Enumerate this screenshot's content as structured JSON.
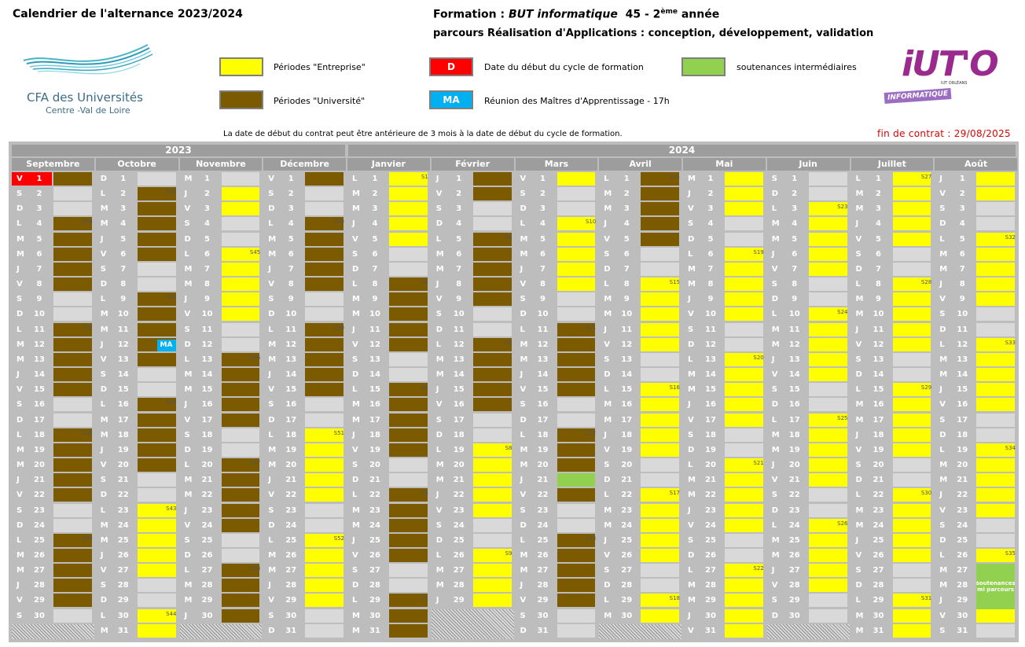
{
  "header": {
    "title": "Calendrier de l'alternance 2023/2024",
    "formation_prefix": "Formation : ",
    "formation_name": "BUT informatique",
    "formation_num": "45 - 2",
    "formation_sup": "ème",
    "formation_suffix": " année",
    "parcours": "parcours Réalisation d'Applications : conception, développement, validation"
  },
  "logos": {
    "cfa_line1": "CFA des Universités",
    "cfa_line2": "Centre -Val de Loire",
    "iuto_text": "iUT'O",
    "iuto_sub": "INFORMATIQUE",
    "iuto_small": "IUT ORLÉANS"
  },
  "legend": {
    "entreprise": "Périodes \"Entreprise\"",
    "universite": "Périodes \"Université\"",
    "debut_badge": "D",
    "debut": "Date du début du cycle de formation",
    "ma_badge": "MA",
    "reunion": "Réunion des Maîtres d'Apprentissage - 17h",
    "soutenances": "soutenances intermédiaires",
    "colors": {
      "entreprise": "#ffff00",
      "universite": "#7b5a00",
      "debut": "#ff0000",
      "reunion": "#00b0f0",
      "soutenances": "#92d050"
    }
  },
  "note": "La date de début du contrat peut être antérieure de 3 mois à la date de début du cycle de formation.",
  "fin_contrat": "fin de contrat : 29/08/2025",
  "years": [
    "2023",
    "2024"
  ],
  "months": [
    {
      "name": "Septembre",
      "first": "V",
      "days": 30,
      "blocks": [
        [
          "U",
          1,
          10
        ],
        [
          "V",
          2,
          3
        ],
        [
          "U",
          4,
          10
        ],
        [
          "U",
          11,
          17
        ],
        [
          "U",
          18,
          24
        ],
        [
          "U",
          25,
          30
        ]
      ],
      "weeks": [
        [
          4,
          "S36"
        ],
        [
          11,
          "S37"
        ],
        [
          18,
          "S38"
        ],
        [
          25,
          "S39"
        ]
      ],
      "special": {
        "red": 1
      }
    },
    {
      "name": "Octobre",
      "first": "D",
      "days": 31,
      "blocks": [
        [
          "V",
          1,
          1
        ],
        [
          "U",
          2,
          8
        ],
        [
          "U",
          9,
          15
        ],
        [
          "U",
          16,
          22
        ],
        [
          "E",
          23,
          31
        ]
      ],
      "weeks": [
        [
          2,
          "S40"
        ],
        [
          9,
          "S41"
        ],
        [
          16,
          "S42"
        ],
        [
          23,
          "S43"
        ],
        [
          30,
          "S44"
        ]
      ],
      "special": {
        "ma": 12
      }
    },
    {
      "name": "Novembre",
      "first": "M",
      "days": 30,
      "blocks": [
        [
          "V",
          1,
          1
        ],
        [
          "E",
          2,
          3
        ],
        [
          "V",
          4,
          5
        ],
        [
          "E",
          6,
          10
        ],
        [
          "V",
          11,
          12
        ],
        [
          "U",
          13,
          19
        ],
        [
          "U",
          20,
          26
        ],
        [
          "U",
          27,
          30
        ]
      ],
      "weeks": [
        [
          6,
          "S45"
        ],
        [
          13,
          "S46"
        ],
        [
          20,
          "S47"
        ],
        [
          27,
          "S48"
        ]
      ],
      "special": {}
    },
    {
      "name": "Décembre",
      "first": "V",
      "days": 31,
      "blocks": [
        [
          "U",
          1,
          3
        ],
        [
          "U",
          4,
          10
        ],
        [
          "U",
          11,
          17
        ],
        [
          "E",
          18,
          24
        ],
        [
          "E",
          25,
          31
        ]
      ],
      "weeks": [
        [
          4,
          "S49"
        ],
        [
          11,
          "S50"
        ],
        [
          18,
          "S51"
        ],
        [
          25,
          "S52"
        ]
      ],
      "special": {}
    },
    {
      "name": "Janvier",
      "first": "L",
      "days": 31,
      "blocks": [
        [
          "E",
          1,
          7
        ],
        [
          "U",
          8,
          14
        ],
        [
          "U",
          15,
          21
        ],
        [
          "U",
          22,
          28
        ],
        [
          "U",
          29,
          31
        ]
      ],
      "weeks": [
        [
          1,
          "S1"
        ],
        [
          8,
          "S2"
        ],
        [
          15,
          "S3"
        ],
        [
          22,
          "S4"
        ],
        [
          29,
          "S5"
        ]
      ],
      "special": {}
    },
    {
      "name": "Février",
      "first": "J",
      "days": 29,
      "blocks": [
        [
          "U",
          1,
          4
        ],
        [
          "U",
          5,
          11
        ],
        [
          "U",
          12,
          18
        ],
        [
          "E",
          19,
          25
        ],
        [
          "E",
          26,
          29
        ]
      ],
      "weeks": [
        [
          5,
          "S6"
        ],
        [
          12,
          "S7"
        ],
        [
          19,
          "S8"
        ],
        [
          26,
          "S9"
        ]
      ],
      "special": {}
    },
    {
      "name": "Mars",
      "first": "V",
      "days": 31,
      "blocks": [
        [
          "E",
          1,
          3
        ],
        [
          "E",
          4,
          10
        ],
        [
          "U",
          11,
          17
        ],
        [
          "U",
          18,
          24
        ],
        [
          "U",
          25,
          31
        ]
      ],
      "weeks": [
        [
          4,
          "S10"
        ],
        [
          11,
          "S11"
        ],
        [
          18,
          "S12"
        ],
        [
          25,
          "S13"
        ]
      ],
      "special": {
        "green": 21
      }
    },
    {
      "name": "Avril",
      "first": "L",
      "days": 30,
      "blocks": [
        [
          "U",
          1,
          7
        ],
        [
          "E",
          8,
          14
        ],
        [
          "E",
          15,
          21
        ],
        [
          "E",
          22,
          28
        ],
        [
          "E",
          29,
          30
        ]
      ],
      "weeks": [
        [
          1,
          "S14"
        ],
        [
          8,
          "S15"
        ],
        [
          15,
          "S16"
        ],
        [
          22,
          "S17"
        ],
        [
          29,
          "S18"
        ]
      ],
      "special": {}
    },
    {
      "name": "Mai",
      "first": "M",
      "days": 31,
      "blocks": [
        [
          "E",
          1,
          5
        ],
        [
          "E",
          6,
          12
        ],
        [
          "E",
          13,
          19
        ],
        [
          "E",
          20,
          26
        ],
        [
          "E",
          27,
          31
        ]
      ],
      "weeks": [
        [
          6,
          "S19"
        ],
        [
          13,
          "S20"
        ],
        [
          20,
          "S21"
        ],
        [
          27,
          "S22"
        ]
      ],
      "special": {}
    },
    {
      "name": "Juin",
      "first": "S",
      "days": 30,
      "blocks": [
        [
          "V",
          1,
          2
        ],
        [
          "E",
          3,
          9
        ],
        [
          "E",
          10,
          16
        ],
        [
          "E",
          17,
          23
        ],
        [
          "E",
          24,
          30
        ]
      ],
      "weeks": [
        [
          3,
          "S23"
        ],
        [
          10,
          "S24"
        ],
        [
          17,
          "S25"
        ],
        [
          24,
          "S26"
        ]
      ],
      "special": {}
    },
    {
      "name": "Juillet",
      "first": "L",
      "days": 31,
      "blocks": [
        [
          "E",
          1,
          7
        ],
        [
          "E",
          8,
          14
        ],
        [
          "E",
          15,
          21
        ],
        [
          "E",
          22,
          28
        ],
        [
          "E",
          29,
          31
        ]
      ],
      "weeks": [
        [
          1,
          "S27"
        ],
        [
          8,
          "S28"
        ],
        [
          15,
          "S29"
        ],
        [
          22,
          "S30"
        ],
        [
          29,
          "S31"
        ]
      ],
      "special": {}
    },
    {
      "name": "Août",
      "first": "J",
      "days": 31,
      "blocks": [
        [
          "E",
          1,
          4
        ],
        [
          "E",
          5,
          11
        ],
        [
          "E",
          12,
          18
        ],
        [
          "E",
          19,
          25
        ],
        [
          "E",
          26,
          31
        ]
      ],
      "weeks": [
        [
          5,
          "S32"
        ],
        [
          12,
          "S33"
        ],
        [
          19,
          "S34"
        ],
        [
          26,
          "S35"
        ]
      ],
      "special": {
        "soutenance_label": "soutenances mi parcours"
      }
    }
  ]
}
